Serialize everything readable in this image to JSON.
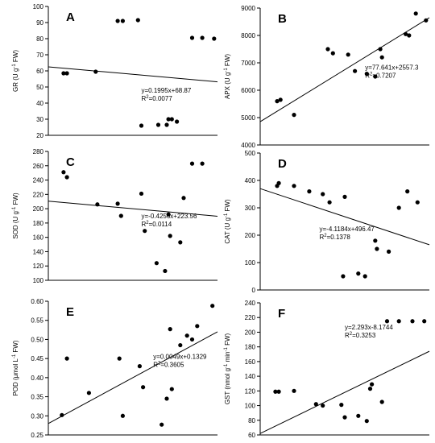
{
  "chart_data": [
    {
      "type": "scatter",
      "panel": "A",
      "ylabel": "GR (U g-1 FW)",
      "ylabel_parts": [
        "GR (U g",
        "-1",
        " FW)"
      ],
      "ylim": [
        20,
        100
      ],
      "yticks": [
        20,
        30,
        40,
        50,
        60,
        70,
        80,
        90,
        100
      ],
      "xlim": [
        0,
        1
      ],
      "grid": false,
      "x": [
        0.09,
        0.11,
        0.28,
        0.41,
        0.44,
        0.53,
        0.55,
        0.65,
        0.7,
        0.71,
        0.73,
        0.76,
        0.85,
        0.91,
        0.98
      ],
      "y": [
        58.5,
        58.5,
        59.5,
        91,
        91,
        91.5,
        26,
        26.5,
        26.5,
        30,
        30,
        28.5,
        80.5,
        80.5,
        80
      ],
      "fit": [
        [
          0,
          62.5
        ],
        [
          1,
          53.2
        ]
      ],
      "equation": "y=0.1995x+68.87",
      "r2": "R2=0.0077",
      "r2_parts": [
        "R",
        "2",
        "=0.0077"
      ]
    },
    {
      "type": "scatter",
      "panel": "B",
      "ylabel": "APX (U g-1 FW)",
      "ylabel_parts": [
        "APX (U g",
        "-1",
        " FW)"
      ],
      "ylim": [
        4000,
        9000
      ],
      "yticks": [
        4000,
        5000,
        6000,
        7000,
        8000,
        9000
      ],
      "xlim": [
        0,
        1
      ],
      "grid": false,
      "x": [
        0.1,
        0.12,
        0.2,
        0.4,
        0.43,
        0.52,
        0.56,
        0.63,
        0.68,
        0.71,
        0.72,
        0.86,
        0.88,
        0.92,
        0.98
      ],
      "y": [
        5600,
        5650,
        5100,
        7500,
        7350,
        7300,
        6700,
        6600,
        6500,
        7500,
        7200,
        8050,
        8000,
        8800,
        8550
      ],
      "fit": [
        [
          0,
          4850
        ],
        [
          1,
          8650
        ]
      ],
      "equation": "y=77.641x+2557.3",
      "r2": "R2=0.7207",
      "r2_parts": [
        "R",
        "2",
        "=0.7207"
      ]
    },
    {
      "type": "scatter",
      "panel": "C",
      "ylabel": "SOD (U g-1 FW)",
      "ylabel_parts": [
        "SOD (U g",
        "-1",
        " FW)"
      ],
      "ylim": [
        100,
        280
      ],
      "yticks": [
        100,
        120,
        140,
        160,
        180,
        200,
        220,
        240,
        260,
        280
      ],
      "xlim": [
        0,
        1
      ],
      "grid": false,
      "x": [
        0.09,
        0.11,
        0.29,
        0.41,
        0.43,
        0.55,
        0.57,
        0.64,
        0.69,
        0.71,
        0.72,
        0.78,
        0.8,
        0.85,
        0.91
      ],
      "y": [
        251,
        244,
        206,
        207,
        190,
        221,
        169,
        124,
        113,
        192,
        162,
        153,
        215,
        263,
        263
      ],
      "fit": [
        [
          0,
          210.5
        ],
        [
          1,
          189.5
        ]
      ],
      "equation": "y=-0.4256x+223.56",
      "r2": "R2=0.0114",
      "r2_parts": [
        "R",
        "2",
        "=0.0114"
      ]
    },
    {
      "type": "scatter",
      "panel": "D",
      "ylabel": "CAT (U g-1 FW)",
      "ylabel_parts": [
        "CAT (U g",
        "-1",
        " FW)"
      ],
      "ylim": [
        0,
        500
      ],
      "yticks": [
        0,
        100,
        200,
        300,
        400,
        500
      ],
      "xlim": [
        0,
        1
      ],
      "grid": false,
      "x": [
        0.1,
        0.11,
        0.2,
        0.29,
        0.37,
        0.41,
        0.49,
        0.5,
        0.58,
        0.62,
        0.68,
        0.69,
        0.76,
        0.82,
        0.87,
        0.93
      ],
      "y": [
        380,
        390,
        380,
        360,
        350,
        320,
        50,
        340,
        60,
        50,
        180,
        150,
        140,
        300,
        360,
        320
      ],
      "fit": [
        [
          0,
          370
        ],
        [
          1,
          165
        ]
      ],
      "equation": "y=-4.1184x+496.47",
      "r2": "R2=0.1378",
      "r2_parts": [
        "R",
        "2",
        "=0.1378"
      ]
    },
    {
      "type": "scatter",
      "panel": "E",
      "ylabel": "POD (μmol L-1 FW)",
      "ylabel_parts": [
        "POD (μmol L",
        "-1",
        " FW)"
      ],
      "ylim": [
        0.25,
        0.6
      ],
      "yticks": [
        0.25,
        0.3,
        0.35,
        0.4,
        0.45,
        0.5,
        0.55,
        0.6
      ],
      "yticklabels": [
        "0.25",
        "0.30",
        "0.35",
        "0.40",
        "0.45",
        "0.50",
        "0.55",
        "0.60"
      ],
      "xlim": [
        0,
        1
      ],
      "grid": false,
      "x": [
        0.08,
        0.11,
        0.24,
        0.42,
        0.44,
        0.54,
        0.56,
        0.67,
        0.7,
        0.72,
        0.73,
        0.78,
        0.82,
        0.85,
        0.88,
        0.97
      ],
      "y": [
        0.302,
        0.45,
        0.36,
        0.45,
        0.3,
        0.43,
        0.375,
        0.277,
        0.345,
        0.527,
        0.37,
        0.485,
        0.51,
        0.5,
        0.535,
        0.588
      ],
      "fit": [
        [
          0,
          0.28
        ],
        [
          1,
          0.52
        ]
      ],
      "equation": "y=0.0049x+0.1329",
      "r2": "R2=0.3605",
      "r2_parts": [
        "R",
        "2",
        "=0.3605"
      ]
    },
    {
      "type": "scatter",
      "panel": "F",
      "ylabel": "GST (nmol g-1 min-1 FW)",
      "ylabel_parts": [
        "GST (nmol g",
        "-1",
        " min",
        "-1",
        " FW)"
      ],
      "ylim": [
        60,
        240
      ],
      "yticks": [
        60,
        80,
        100,
        120,
        140,
        160,
        180,
        200,
        220,
        240
      ],
      "xlim": [
        0,
        1
      ],
      "grid": false,
      "x": [
        0.09,
        0.11,
        0.2,
        0.33,
        0.37,
        0.48,
        0.5,
        0.58,
        0.63,
        0.65,
        0.66,
        0.72,
        0.75,
        0.82,
        0.9,
        0.97
      ],
      "y": [
        119,
        119,
        120,
        102,
        100,
        101,
        84,
        86,
        79,
        123,
        129,
        105,
        215,
        215,
        215,
        215
      ],
      "fit": [
        [
          0,
          62
        ],
        [
          1,
          174
        ]
      ],
      "equation": "y=2.293x-8.1744",
      "r2": "R2=0.3253",
      "r2_parts": [
        "R",
        "2",
        "=0.3253"
      ]
    }
  ]
}
